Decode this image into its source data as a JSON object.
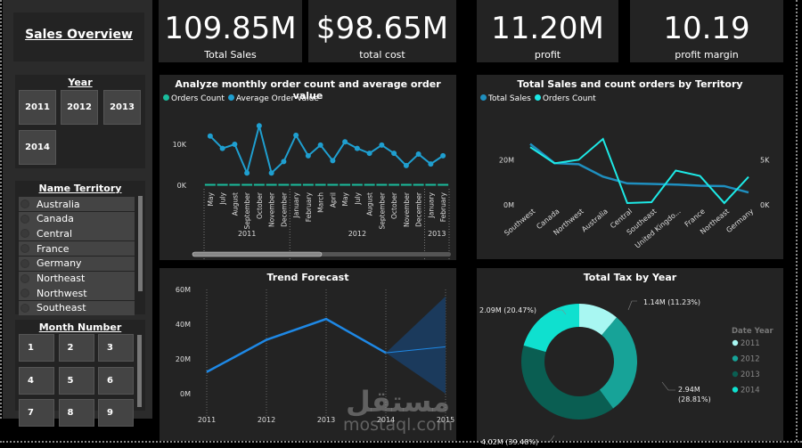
{
  "sidebar": {
    "title": "Sales Overview",
    "year_slicer": {
      "label": "Year",
      "options": [
        "2011",
        "2012",
        "2013",
        "2014"
      ]
    },
    "territory_slicer": {
      "label": "Name Territory",
      "options": [
        "Australia",
        "Canada",
        "Central",
        "France",
        "Germany",
        "Northeast",
        "Northwest",
        "Southeast"
      ]
    },
    "month_slicer": {
      "label": "Month Number",
      "options": [
        "1",
        "2",
        "3",
        "4",
        "5",
        "6",
        "7",
        "8",
        "9"
      ]
    }
  },
  "kpis": [
    {
      "value": "109.85M",
      "label": "Total Sales"
    },
    {
      "value": "$98.65M",
      "label": "total cost"
    },
    {
      "value": "11.20M",
      "label": "profit"
    },
    {
      "value": "10.19",
      "label": "profit margin"
    }
  ],
  "colors": {
    "orders_count": "#1abc9c",
    "avg_order_value": "#1f9fd0",
    "total_sales": "#1f8fbf",
    "territory_orders": "#1de9e6",
    "trend": "#1e88e5",
    "forecast_band": "#1b3a5c",
    "tax_2011": "#a8f7f2",
    "tax_2012": "#17a398",
    "tax_2013": "#0a5e52",
    "tax_2014": "#0fe0cf"
  },
  "watermark": {
    "arabic": "مستقل",
    "latin": "mostaql.com"
  },
  "chart_data": [
    {
      "type": "line",
      "title": "Analyze monthly order count and average order value",
      "legend": [
        "Orders Count",
        "Average Order Value"
      ],
      "y_ticks": [
        "0K",
        "10K"
      ],
      "ylim": [
        0,
        15000
      ],
      "x": [
        "May",
        "July",
        "August",
        "September",
        "October",
        "November",
        "December",
        "January",
        "February",
        "March",
        "April",
        "May",
        "July",
        "August",
        "September",
        "October",
        "November",
        "December",
        "January",
        "February"
      ],
      "year_groups": [
        {
          "label": "2011",
          "count": 7
        },
        {
          "label": "2012",
          "count": 11
        },
        {
          "label": "2013",
          "count": 2
        }
      ],
      "series": [
        {
          "name": "Average Order Value",
          "values": [
            12000,
            9000,
            10000,
            3000,
            14500,
            3000,
            5800,
            12200,
            7200,
            9800,
            6000,
            10600,
            9000,
            7800,
            9800,
            7800,
            4800,
            7600,
            5200,
            7200
          ]
        },
        {
          "name": "Orders Count",
          "values": [
            100,
            300,
            300,
            150,
            400,
            350,
            350,
            400,
            350,
            350,
            350,
            400,
            450,
            400,
            400,
            400,
            450,
            450,
            450,
            400
          ]
        }
      ],
      "scroll_fraction": 0.5
    },
    {
      "type": "line",
      "title": "Total Sales and count orders by Territory",
      "legend": [
        "Total Sales",
        "Orders Count"
      ],
      "categories": [
        "Southwest",
        "Canada",
        "Northwest",
        "Australia",
        "Central",
        "Southeast",
        "United Kingdo...",
        "France",
        "Northeast",
        "Germany"
      ],
      "y_left_ticks": [
        "0M",
        "20M"
      ],
      "y_left_lim": [
        0,
        30000000
      ],
      "y_right_ticks": [
        "0K",
        "5K"
      ],
      "y_right_lim": [
        0,
        7500
      ],
      "series": [
        {
          "name": "Total Sales",
          "axis": "left",
          "values": [
            27000000,
            18500000,
            18000000,
            12500000,
            9500000,
            9300000,
            9000000,
            8500000,
            8300000,
            5500000
          ]
        },
        {
          "name": "Orders Count",
          "axis": "right",
          "values": [
            6400,
            4600,
            5000,
            7300,
            200,
            300,
            3800,
            3200,
            200,
            3100
          ]
        }
      ]
    },
    {
      "type": "line",
      "title": "Trend Forecast",
      "x": [
        "2011",
        "2012",
        "2013",
        "2014",
        "2015"
      ],
      "y_ticks": [
        "0M",
        "20M",
        "40M",
        "60M"
      ],
      "ylim": [
        0,
        60000000
      ],
      "series": [
        {
          "name": "Total Sales",
          "values": [
            12500000,
            31000000,
            43000000,
            23500000
          ]
        },
        {
          "name": "Forecast",
          "values": [
            null,
            null,
            null,
            23500000,
            27000000
          ]
        }
      ],
      "forecast_band": {
        "from": "2014",
        "to": "2015",
        "lower": 0,
        "upper": 56000000
      }
    },
    {
      "type": "pie",
      "donut": true,
      "title": "Total Tax by Year",
      "legend_title": "Date Year",
      "categories": [
        "2011",
        "2012",
        "2013",
        "2014"
      ],
      "values": [
        1.14,
        2.94,
        4.02,
        2.09
      ],
      "percents": [
        11.23,
        28.81,
        39.48,
        20.47
      ],
      "labels": [
        "1.14M (11.23%)",
        "2.94M (28.81%)",
        "4.02M (39.48%)",
        "2.09M (20.47%)"
      ],
      "legend_position": "right"
    }
  ]
}
